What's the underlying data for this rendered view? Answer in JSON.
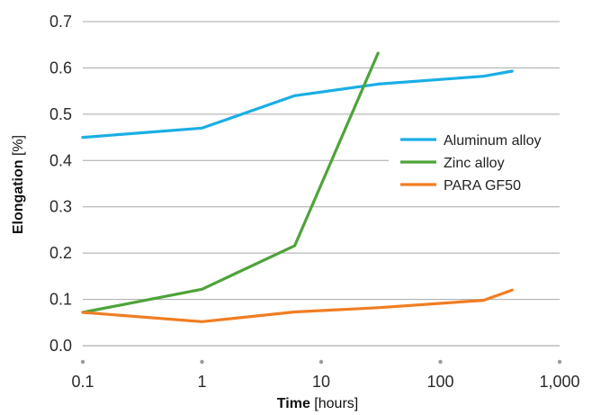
{
  "chart_data": {
    "type": "line",
    "title": "",
    "xlabel_bold": "Time",
    "xlabel_unit": "[hours]",
    "ylabel_bold": "Elongation",
    "ylabel_unit": "[%]",
    "x_scale": "log",
    "xlim": [
      0.1,
      1000
    ],
    "ylim": [
      0.0,
      0.7
    ],
    "x_ticks": [
      0.1,
      1,
      10,
      100,
      1000
    ],
    "x_tick_labels": [
      "0.1",
      "1",
      "10",
      "100",
      "1,000"
    ],
    "y_ticks": [
      0.0,
      0.1,
      0.2,
      0.3,
      0.4,
      0.5,
      0.6,
      0.7
    ],
    "y_tick_labels": [
      "0.0",
      "0.1",
      "0.2",
      "0.3",
      "0.4",
      "0.5",
      "0.6",
      "0.7"
    ],
    "grid": "horizontal",
    "legend_position": "right",
    "series": [
      {
        "name": "Aluminum alloy",
        "color": "#1aaee6",
        "points": [
          [
            0.1,
            0.45
          ],
          [
            1,
            0.47
          ],
          [
            6,
            0.54
          ],
          [
            30,
            0.565
          ],
          [
            230,
            0.582
          ],
          [
            400,
            0.593
          ]
        ]
      },
      {
        "name": "Zinc alloy",
        "color": "#4ea33a",
        "points": [
          [
            0.1,
            0.072
          ],
          [
            1,
            0.122
          ],
          [
            6,
            0.216
          ],
          [
            30,
            0.632
          ]
        ]
      },
      {
        "name": "PARA GF50",
        "color": "#f07d22",
        "points": [
          [
            0.1,
            0.072
          ],
          [
            1,
            0.052
          ],
          [
            6,
            0.073
          ],
          [
            30,
            0.082
          ],
          [
            230,
            0.098
          ],
          [
            400,
            0.12
          ]
        ]
      }
    ]
  }
}
